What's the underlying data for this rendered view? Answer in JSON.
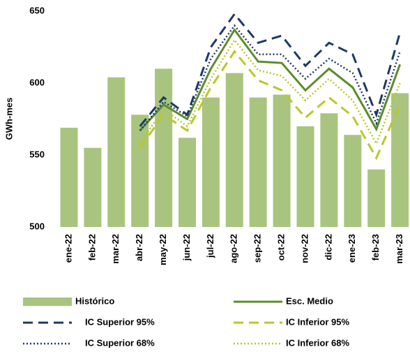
{
  "chart_data": {
    "type": "bar",
    "y_label": "GWh-mes",
    "categories": [
      "ene-22",
      "feb-22",
      "mar-22",
      "abr-22",
      "may-22",
      "jun-22",
      "jul-22",
      "ago-22",
      "sep-22",
      "oct-22",
      "nov-22",
      "dic-22",
      "ene-23",
      "feb-23",
      "mar-23"
    ],
    "ylim": [
      500,
      650
    ],
    "yticks": [
      500,
      550,
      600,
      650
    ],
    "series": [
      {
        "name": "Histórico",
        "type": "bar",
        "color": "#a9c47f",
        "values": [
          569,
          555,
          604,
          578,
          610,
          562,
          590,
          607,
          590,
          592,
          570,
          579,
          564,
          540,
          593
        ]
      },
      {
        "name": "Esc. Medio",
        "type": "line",
        "dash": "solid",
        "color": "#5b8c2a",
        "values": [
          null,
          null,
          null,
          567,
          585,
          575,
          610,
          637,
          615,
          614,
          595,
          610,
          597,
          568,
          613
        ]
      },
      {
        "name": "IC Superior 95%",
        "type": "line",
        "dash": "dashed",
        "color": "#1f3864",
        "values": [
          null,
          null,
          null,
          570,
          590,
          578,
          625,
          648,
          628,
          633,
          612,
          628,
          620,
          578,
          635
        ]
      },
      {
        "name": "IC Inferior 95%",
        "type": "line",
        "dash": "dashed",
        "color": "#b8c82a",
        "values": [
          null,
          null,
          null,
          555,
          578,
          567,
          597,
          622,
          602,
          595,
          576,
          590,
          577,
          548,
          585
        ]
      },
      {
        "name": "IC Superior 68%",
        "type": "line",
        "dash": "dotted",
        "color": "#1f3864",
        "values": [
          null,
          null,
          null,
          567,
          587,
          577,
          617,
          640,
          620,
          620,
          603,
          617,
          607,
          572,
          622
        ]
      },
      {
        "name": "IC Inferior 68%",
        "type": "line",
        "dash": "dotted",
        "color": "#b8c82a",
        "values": [
          null,
          null,
          null,
          558,
          582,
          570,
          603,
          630,
          609,
          605,
          588,
          603,
          588,
          558,
          600
        ]
      }
    ]
  }
}
